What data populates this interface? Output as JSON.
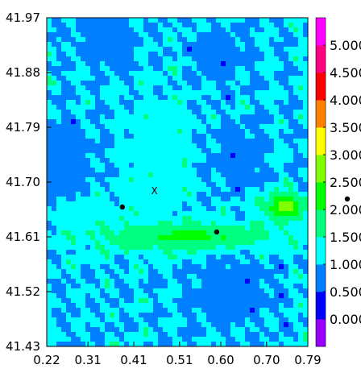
{
  "chart_data": {
    "type": "heatmap",
    "subtype": "filled-contour",
    "xlim": [
      0.22,
      0.79
    ],
    "ylim": [
      41.43,
      41.97
    ],
    "x_ticks": [
      "0.22",
      "0.31",
      "0.41",
      "0.51",
      "0.60",
      "0.70",
      "0.79"
    ],
    "y_ticks": [
      "41.43",
      "41.52",
      "41.61",
      "41.70",
      "41.79",
      "41.88",
      "41.97"
    ],
    "colorbar": {
      "labels": [
        "0.000",
        "0.500",
        "1.000",
        "1.500",
        "2.000",
        "2.500",
        "3.000",
        "3.500",
        "4.000",
        "4.500",
        "5.000"
      ],
      "levels": [
        0,
        0.5,
        1.0,
        1.5,
        2.0,
        2.5,
        3.0,
        3.5,
        4.0,
        4.5,
        5.0
      ],
      "colors": [
        "#9900ff",
        "#0000ff",
        "#0080ff",
        "#00ffff",
        "#00ff80",
        "#00ff00",
        "#80ff00",
        "#ffff00",
        "#ff8000",
        "#ff0000",
        "#ff0080",
        "#ff00ff"
      ]
    },
    "grid": false,
    "markers": [
      {
        "kind": "dot",
        "x": 0.385,
        "y": 41.659
      },
      {
        "kind": "dot",
        "x": 0.591,
        "y": 41.618
      },
      {
        "kind": "text",
        "label": "X",
        "x": 0.455,
        "y": 41.68
      }
    ],
    "field_bands": [
      {
        "level": 2.0,
        "cx": 0.52,
        "cy": 41.61,
        "rx": 0.2,
        "ry": 0.025
      },
      {
        "level": 2.5,
        "cx": 0.74,
        "cy": 41.66,
        "rx": 0.05,
        "ry": 0.022
      },
      {
        "level": 1.5,
        "cx": 0.46,
        "cy": 41.74,
        "rx": 0.06,
        "ry": 0.1
      },
      {
        "level": 1.5,
        "cx": 0.33,
        "cy": 41.64,
        "rx": 0.08,
        "ry": 0.03
      },
      {
        "level": 0.5,
        "cx": 0.26,
        "cy": 41.74,
        "rx": 0.05,
        "ry": 0.06
      },
      {
        "level": 0.5,
        "cx": 0.64,
        "cy": 41.74,
        "rx": 0.05,
        "ry": 0.05
      },
      {
        "level": 0.5,
        "cx": 0.35,
        "cy": 41.93,
        "rx": 0.06,
        "ry": 0.04
      },
      {
        "level": 0.5,
        "cx": 0.6,
        "cy": 41.91,
        "rx": 0.05,
        "ry": 0.04
      },
      {
        "level": 0.5,
        "cx": 0.62,
        "cy": 41.52,
        "rx": 0.08,
        "ry": 0.05
      },
      {
        "level": 1.0,
        "cx": 0.27,
        "cy": 41.47,
        "rx": 0.05,
        "ry": 0.05
      }
    ],
    "off_axis_dot": {
      "present": true
    }
  }
}
